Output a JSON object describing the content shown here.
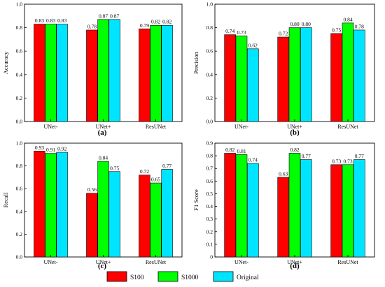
{
  "colors": {
    "S100": "#ff0000",
    "S1000": "#00ff00",
    "Original": "#00e5ff",
    "axis": "#000000"
  },
  "legend": [
    "S100",
    "S1000",
    "Original"
  ],
  "chart_data": [
    {
      "type": "bar",
      "panel_label": "(a)",
      "ylabel": "Accuracy",
      "categories": [
        "UNet-",
        "UNet+",
        "ResUNet"
      ],
      "ylim": [
        0,
        1.0
      ],
      "yticks": [
        "0.0",
        "0.2",
        "0.4",
        "0.6",
        "0.8",
        "1.0"
      ],
      "series": [
        {
          "name": "S100",
          "values": [
            0.83,
            0.78,
            0.79
          ],
          "labels": [
            "0.83",
            "0.78",
            "0.79"
          ]
        },
        {
          "name": "S1000",
          "values": [
            0.83,
            0.87,
            0.82
          ],
          "labels": [
            "0.83",
            "0.87",
            "0.82"
          ]
        },
        {
          "name": "Original",
          "values": [
            0.83,
            0.87,
            0.82
          ],
          "labels": [
            "0.83",
            "0.87",
            "0.82"
          ]
        }
      ]
    },
    {
      "type": "bar",
      "panel_label": "(b)",
      "ylabel": "Precision",
      "categories": [
        "UNet-",
        "UNet+",
        "ResUNet"
      ],
      "ylim": [
        0,
        1.0
      ],
      "yticks": [
        "0.0",
        "0.2",
        "0.4",
        "0.6",
        "0.8",
        "1.0"
      ],
      "series": [
        {
          "name": "S100",
          "values": [
            0.74,
            0.72,
            0.75
          ],
          "labels": [
            "0.74",
            "0.72",
            "0.75"
          ]
        },
        {
          "name": "S1000",
          "values": [
            0.73,
            0.8,
            0.84
          ],
          "labels": [
            "0.73",
            "0.80",
            "0.84"
          ]
        },
        {
          "name": "Original",
          "values": [
            0.62,
            0.8,
            0.78
          ],
          "labels": [
            "0.62",
            "0.80",
            "0.78"
          ]
        }
      ]
    },
    {
      "type": "bar",
      "panel_label": "(c)",
      "ylabel": "Recall",
      "categories": [
        "UNet-",
        "UNet+",
        "ResUNet"
      ],
      "ylim": [
        0,
        1.0
      ],
      "yticks": [
        "0.0",
        "0.2",
        "0.4",
        "0.6",
        "0.8",
        "1.0"
      ],
      "series": [
        {
          "name": "S100",
          "values": [
            0.93,
            0.56,
            0.72
          ],
          "labels": [
            "0.93",
            "0.56",
            "0.72"
          ]
        },
        {
          "name": "S1000",
          "values": [
            0.91,
            0.84,
            0.65
          ],
          "labels": [
            "0.91",
            "0.84",
            "0.65"
          ]
        },
        {
          "name": "Original",
          "values": [
            0.92,
            0.75,
            0.77
          ],
          "labels": [
            "0.92",
            "0.75",
            "0.77"
          ]
        }
      ]
    },
    {
      "type": "bar",
      "panel_label": "(d)",
      "ylabel": "F1 Score",
      "categories": [
        "UNet-",
        "UNet+",
        "ResUNet"
      ],
      "ylim": [
        0,
        0.9
      ],
      "yticks": [
        "0",
        "0.1",
        "0.2",
        "0.3",
        "0.4",
        "0.5",
        "0.6",
        "0.7",
        "0.8",
        "0.9"
      ],
      "series": [
        {
          "name": "S100",
          "values": [
            0.82,
            0.63,
            0.73
          ],
          "labels": [
            "0.82",
            "0.63",
            "0.73"
          ]
        },
        {
          "name": "S1000",
          "values": [
            0.81,
            0.82,
            0.73
          ],
          "labels": [
            "0.81",
            "0.82",
            "0.73"
          ]
        },
        {
          "name": "Original",
          "values": [
            0.74,
            0.77,
            0.77
          ],
          "labels": [
            "0.74",
            "0.77",
            "0.77"
          ]
        }
      ]
    }
  ]
}
